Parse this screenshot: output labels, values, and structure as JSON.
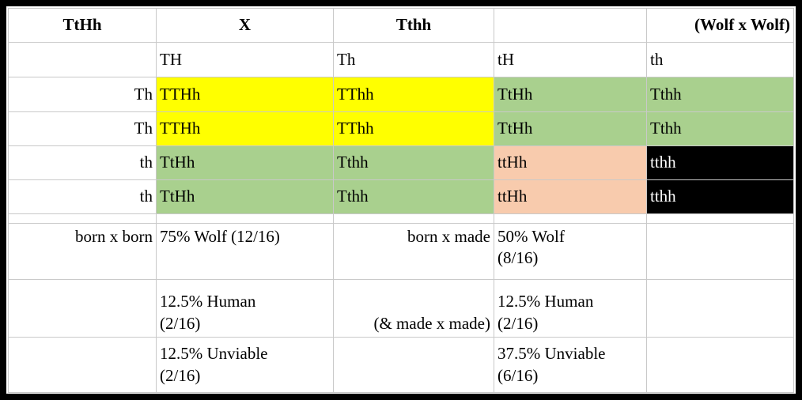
{
  "colors": {
    "dominant_both": "#FFFF00",
    "carrier_green": "#A9D08E",
    "tt_carrier_peach": "#F8CBAD",
    "unviable_black_bg": "#000000",
    "unviable_text": "#FFFFFF",
    "gridline": "#C9C9C9",
    "outer_border": "#000000"
  },
  "table": {
    "header": {
      "parent1": "TtHh",
      "cross": "X",
      "parent2": "Tthh",
      "blank": "",
      "note": "(Wolf x Wolf)"
    },
    "gametes_top": [
      "TH",
      "Th",
      "tH",
      "th"
    ],
    "punnett_rows": [
      {
        "gamete": "Th",
        "cells": [
          {
            "text": "TTHh",
            "fill": "yellow"
          },
          {
            "text": "TThh",
            "fill": "yellow"
          },
          {
            "text": "TtHh",
            "fill": "green"
          },
          {
            "text": "Tthh",
            "fill": "green"
          }
        ]
      },
      {
        "gamete": "Th",
        "cells": [
          {
            "text": "TTHh",
            "fill": "yellow"
          },
          {
            "text": "TThh",
            "fill": "yellow"
          },
          {
            "text": "TtHh",
            "fill": "green"
          },
          {
            "text": "Tthh",
            "fill": "green"
          }
        ]
      },
      {
        "gamete": "th",
        "cells": [
          {
            "text": "TtHh",
            "fill": "green"
          },
          {
            "text": "Tthh",
            "fill": "green"
          },
          {
            "text": "ttHh",
            "fill": "peach"
          },
          {
            "text": "tthh",
            "fill": "black"
          }
        ]
      },
      {
        "gamete": "th",
        "cells": [
          {
            "text": "TtHh",
            "fill": "green"
          },
          {
            "text": "Tthh",
            "fill": "green"
          },
          {
            "text": "ttHh",
            "fill": "peach"
          },
          {
            "text": "tthh",
            "fill": "black"
          }
        ]
      }
    ],
    "summary_rows": [
      {
        "label": "born x born",
        "col2": "75% Wolf (12/16)",
        "col3": "born x made",
        "col4": "50% Wolf\n(8/16)",
        "col5": ""
      },
      {
        "label": "",
        "col2": "12.5% Human\n(2/16)",
        "col3": "(& made x made)",
        "col4": "12.5% Human\n(2/16)",
        "col5": ""
      },
      {
        "label": "",
        "col2": "12.5% Unviable\n(2/16)",
        "col3": "",
        "col4": "37.5% Unviable\n(6/16)",
        "col5": ""
      }
    ]
  }
}
